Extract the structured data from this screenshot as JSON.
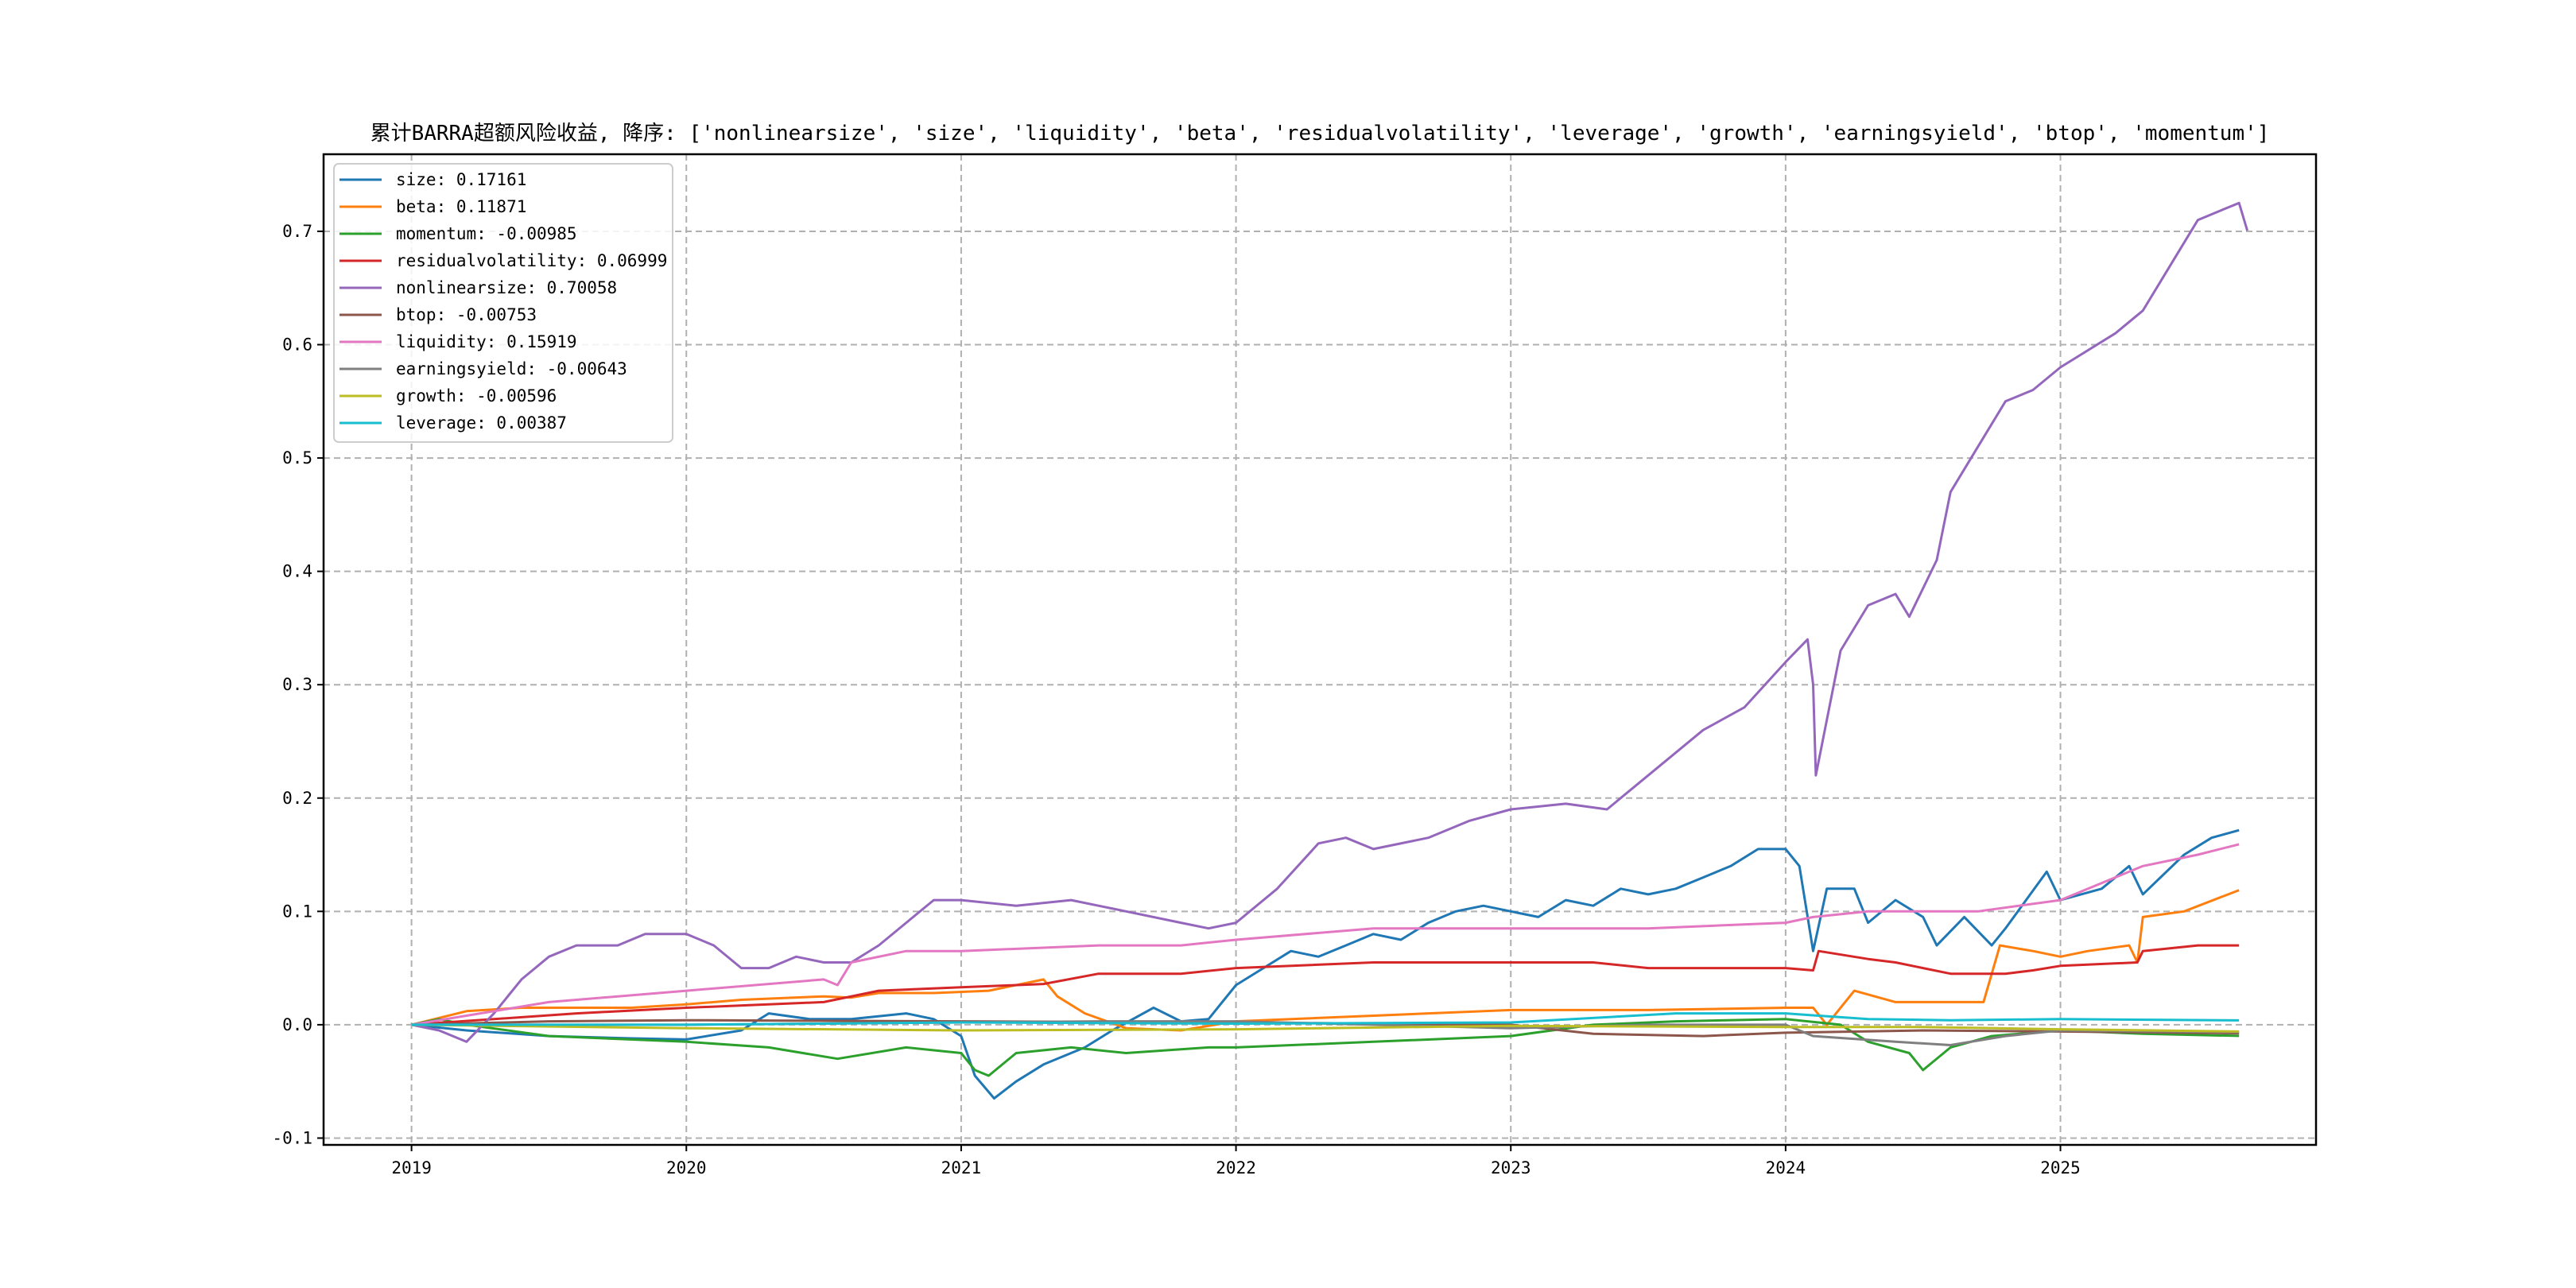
{
  "chart_data": {
    "type": "line",
    "title": "累计BARRA超额风险收益,  降序: ['nonlinearsize', 'size', 'liquidity', 'beta', 'residualvolatility', 'leverage', 'growth', 'earningsyield', 'btop', 'momentum']",
    "xlabel": "",
    "ylabel": "",
    "xlim": [
      2018.68,
      2025.93
    ],
    "ylim": [
      -0.106,
      0.768
    ],
    "xticks": [
      2019,
      2020,
      2021,
      2022,
      2023,
      2024,
      2025
    ],
    "xtick_labels": [
      "2019",
      "2020",
      "2021",
      "2022",
      "2023",
      "2024",
      "2025"
    ],
    "yticks": [
      -0.1,
      0.0,
      0.1,
      0.2,
      0.3,
      0.4,
      0.5,
      0.6,
      0.7
    ],
    "ytick_labels": [
      "-0.1",
      "0.0",
      "0.1",
      "0.2",
      "0.3",
      "0.4",
      "0.5",
      "0.6",
      "0.7"
    ],
    "grid": true,
    "legend_position": "top-left",
    "series": [
      {
        "name": "size",
        "label": "size: 0.17161",
        "color": "#1f77b4",
        "x": [
          2019,
          2019.2,
          2019.5,
          2019.8,
          2020.0,
          2020.2,
          2020.3,
          2020.45,
          2020.6,
          2020.8,
          2020.9,
          2021.0,
          2021.05,
          2021.12,
          2021.2,
          2021.3,
          2021.45,
          2021.55,
          2021.7,
          2021.8,
          2021.9,
          2022.0,
          2022.1,
          2022.2,
          2022.3,
          2022.4,
          2022.5,
          2022.6,
          2022.7,
          2022.8,
          2022.9,
          2023.0,
          2023.1,
          2023.2,
          2023.3,
          2023.4,
          2023.5,
          2023.6,
          2023.7,
          2023.8,
          2023.9,
          2024.0,
          2024.05,
          2024.1,
          2024.15,
          2024.25,
          2024.3,
          2024.4,
          2024.5,
          2024.55,
          2024.65,
          2024.75,
          2024.8,
          2024.95,
          2025.0,
          2025.15,
          2025.25,
          2025.3,
          2025.45,
          2025.55,
          2025.65
        ],
        "y": [
          0,
          -0.005,
          -0.01,
          -0.012,
          -0.013,
          -0.005,
          0.01,
          0.005,
          0.005,
          0.01,
          0.005,
          -0.01,
          -0.045,
          -0.065,
          -0.05,
          -0.035,
          -0.02,
          -0.005,
          0.015,
          0.003,
          0.005,
          0.035,
          0.05,
          0.065,
          0.06,
          0.07,
          0.08,
          0.075,
          0.09,
          0.1,
          0.105,
          0.1,
          0.095,
          0.11,
          0.105,
          0.12,
          0.115,
          0.12,
          0.13,
          0.14,
          0.155,
          0.155,
          0.14,
          0.065,
          0.12,
          0.12,
          0.09,
          0.11,
          0.095,
          0.07,
          0.095,
          0.07,
          0.085,
          0.135,
          0.11,
          0.12,
          0.14,
          0.115,
          0.15,
          0.165,
          0.17161
        ]
      },
      {
        "name": "beta",
        "label": "beta: 0.11871",
        "color": "#ff7f0e",
        "x": [
          2019,
          2019.2,
          2019.4,
          2019.8,
          2020.0,
          2020.2,
          2020.5,
          2020.6,
          2020.7,
          2020.9,
          2021.1,
          2021.3,
          2021.35,
          2021.45,
          2021.6,
          2021.8,
          2022.0,
          2022.5,
          2023.0,
          2023.5,
          2024.0,
          2024.1,
          2024.15,
          2024.25,
          2024.4,
          2024.6,
          2024.72,
          2024.78,
          2024.9,
          2025.0,
          2025.1,
          2025.25,
          2025.28,
          2025.3,
          2025.45,
          2025.65
        ],
        "y": [
          0,
          0.012,
          0.015,
          0.015,
          0.018,
          0.022,
          0.025,
          0.024,
          0.028,
          0.028,
          0.03,
          0.04,
          0.025,
          0.01,
          -0.003,
          -0.005,
          0.003,
          0.008,
          0.013,
          0.013,
          0.015,
          0.015,
          0.0,
          0.03,
          0.02,
          0.02,
          0.02,
          0.07,
          0.065,
          0.06,
          0.065,
          0.07,
          0.055,
          0.095,
          0.1,
          0.11871
        ]
      },
      {
        "name": "momentum",
        "label": "momentum: -0.00985",
        "color": "#2ca02c",
        "x": [
          2019,
          2019.1,
          2019.2,
          2019.5,
          2020,
          2020.3,
          2020.55,
          2020.8,
          2021.0,
          2021.05,
          2021.1,
          2021.2,
          2021.4,
          2021.6,
          2021.9,
          2022,
          2022.5,
          2023,
          2023.3,
          2023.6,
          2024,
          2024.2,
          2024.3,
          2024.45,
          2024.5,
          2024.6,
          2024.75,
          2025,
          2025.3,
          2025.65
        ],
        "y": [
          0,
          0.005,
          0.0,
          -0.01,
          -0.015,
          -0.02,
          -0.03,
          -0.02,
          -0.025,
          -0.04,
          -0.045,
          -0.025,
          -0.02,
          -0.025,
          -0.02,
          -0.02,
          -0.015,
          -0.01,
          0.0,
          0.003,
          0.005,
          0.0,
          -0.015,
          -0.025,
          -0.04,
          -0.02,
          -0.01,
          -0.005,
          -0.008,
          -0.00985
        ]
      },
      {
        "name": "residualvolatility",
        "label": "residualvolatility: 0.06999",
        "color": "#d62728",
        "x": [
          2019,
          2019.3,
          2019.6,
          2020,
          2020.5,
          2020.7,
          2021.0,
          2021.3,
          2021.5,
          2021.8,
          2022,
          2022.5,
          2022.8,
          2023,
          2023.3,
          2023.5,
          2023.8,
          2024.0,
          2024.1,
          2024.12,
          2024.3,
          2024.4,
          2024.6,
          2024.8,
          2024.9,
          2025.0,
          2025.28,
          2025.3,
          2025.5,
          2025.65
        ],
        "y": [
          0,
          0.005,
          0.01,
          0.015,
          0.02,
          0.03,
          0.033,
          0.036,
          0.045,
          0.045,
          0.05,
          0.055,
          0.055,
          0.055,
          0.055,
          0.05,
          0.05,
          0.05,
          0.048,
          0.065,
          0.058,
          0.055,
          0.045,
          0.045,
          0.048,
          0.052,
          0.055,
          0.065,
          0.07,
          0.06999
        ]
      },
      {
        "name": "nonlinearsize",
        "label": "nonlinearsize: 0.70058",
        "color": "#9467bd",
        "x": [
          2019,
          2019.1,
          2019.2,
          2019.3,
          2019.4,
          2019.5,
          2019.6,
          2019.75,
          2019.85,
          2020.0,
          2020.1,
          2020.2,
          2020.3,
          2020.4,
          2020.5,
          2020.6,
          2020.7,
          2020.8,
          2020.9,
          2021.0,
          2021.2,
          2021.4,
          2021.5,
          2021.6,
          2021.8,
          2021.9,
          2022.0,
          2022.15,
          2022.3,
          2022.4,
          2022.5,
          2022.7,
          2022.85,
          2023.0,
          2023.2,
          2023.35,
          2023.5,
          2023.7,
          2023.85,
          2024.0,
          2024.08,
          2024.1,
          2024.11,
          2024.2,
          2024.3,
          2024.4,
          2024.45,
          2024.55,
          2024.6,
          2024.7,
          2024.8,
          2024.9,
          2025.0,
          2025.2,
          2025.3,
          2025.4,
          2025.5,
          2025.6,
          2025.65,
          2025.68
        ],
        "y": [
          0,
          -0.005,
          -0.015,
          0.01,
          0.04,
          0.06,
          0.07,
          0.07,
          0.08,
          0.08,
          0.07,
          0.05,
          0.05,
          0.06,
          0.055,
          0.055,
          0.07,
          0.09,
          0.11,
          0.11,
          0.105,
          0.11,
          0.105,
          0.1,
          0.09,
          0.085,
          0.09,
          0.12,
          0.16,
          0.165,
          0.155,
          0.165,
          0.18,
          0.19,
          0.195,
          0.19,
          0.22,
          0.26,
          0.28,
          0.32,
          0.34,
          0.3,
          0.22,
          0.33,
          0.37,
          0.38,
          0.36,
          0.41,
          0.47,
          0.51,
          0.55,
          0.56,
          0.58,
          0.61,
          0.63,
          0.67,
          0.71,
          0.72,
          0.725,
          0.70058
        ]
      },
      {
        "name": "btop",
        "label": "btop: -0.00753",
        "color": "#8c564b",
        "x": [
          2019,
          2019.5,
          2020,
          2021,
          2022,
          2023,
          2023.3,
          2023.7,
          2024,
          2024.5,
          2025,
          2025.65
        ],
        "y": [
          0,
          0.003,
          0.004,
          0.003,
          0.002,
          0.0,
          -0.008,
          -0.01,
          -0.007,
          -0.005,
          -0.006,
          -0.00753
        ]
      },
      {
        "name": "liquidity",
        "label": "liquidity: 0.15919",
        "color": "#e377c2",
        "x": [
          2019,
          2019.5,
          2020,
          2020.5,
          2020.55,
          2020.6,
          2020.8,
          2021,
          2021.5,
          2021.8,
          2022,
          2022.5,
          2023,
          2023.5,
          2024,
          2024.1,
          2024.3,
          2024.7,
          2025.0,
          2025.3,
          2025.5,
          2025.65
        ],
        "y": [
          0,
          0.02,
          0.03,
          0.04,
          0.035,
          0.055,
          0.065,
          0.065,
          0.07,
          0.07,
          0.075,
          0.085,
          0.085,
          0.085,
          0.09,
          0.095,
          0.1,
          0.1,
          0.11,
          0.14,
          0.15,
          0.15919
        ]
      },
      {
        "name": "earningsyield",
        "label": "earningsyield: -0.00643",
        "color": "#7f7f7f",
        "x": [
          2019,
          2020,
          2021,
          2021.5,
          2022,
          2023,
          2023.5,
          2024,
          2024.1,
          2024.4,
          2024.6,
          2024.8,
          2025,
          2025.65
        ],
        "y": [
          0,
          0.0,
          0.002,
          0.003,
          0.003,
          -0.003,
          0.0,
          0.0,
          -0.01,
          -0.015,
          -0.018,
          -0.01,
          -0.005,
          -0.00643
        ]
      },
      {
        "name": "growth",
        "label": "growth: -0.00596",
        "color": "#bcbd22",
        "x": [
          2019,
          2020,
          2021,
          2022,
          2023,
          2024,
          2024.5,
          2025,
          2025.65
        ],
        "y": [
          0,
          -0.003,
          -0.005,
          -0.004,
          -0.001,
          -0.002,
          -0.002,
          -0.004,
          -0.00596
        ]
      },
      {
        "name": "leverage",
        "label": "leverage: 0.00387",
        "color": "#17becf",
        "x": [
          2019,
          2020,
          2021,
          2022,
          2023,
          2023.6,
          2024,
          2024.3,
          2024.6,
          2025,
          2025.65
        ],
        "y": [
          0,
          0.0,
          0.002,
          0.001,
          0.002,
          0.01,
          0.01,
          0.005,
          0.004,
          0.005,
          0.00387
        ]
      }
    ]
  }
}
